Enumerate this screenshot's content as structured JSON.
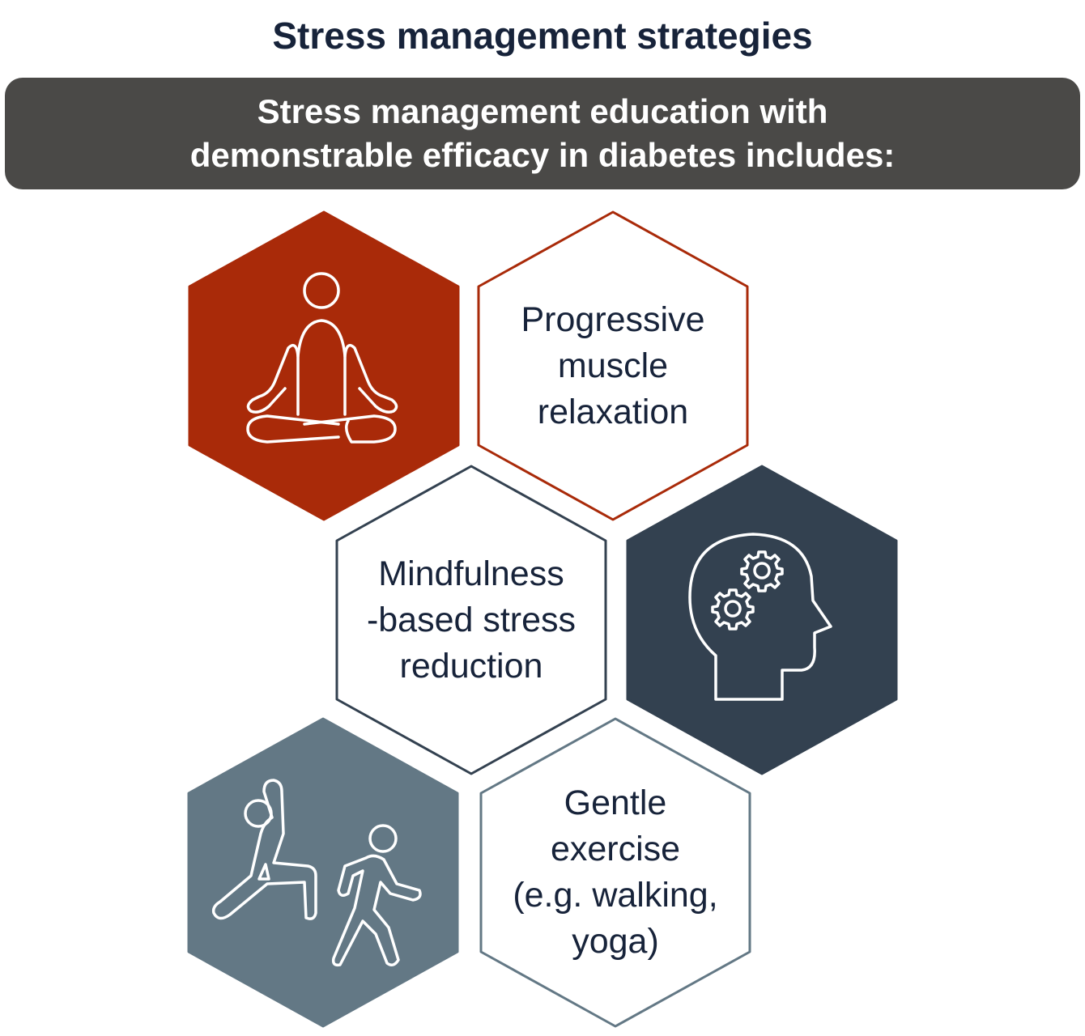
{
  "title": "Stress management strategies",
  "banner": {
    "line1": "Stress management education with",
    "line2": "demonstrable efficacy in diabetes includes:"
  },
  "colors": {
    "rust": "#a92a09",
    "navy": "#334150",
    "slate": "#637885",
    "text": "#17233a",
    "banner": "#4a4947"
  },
  "strategies": [
    {
      "icon": "meditation-icon",
      "lines": [
        "Progressive",
        "muscle",
        "relaxation"
      ]
    },
    {
      "icon": "head-gears-icon",
      "lines": [
        "Mindfulness",
        "-based stress",
        "reduction"
      ]
    },
    {
      "icon": "exercise-icon",
      "lines": [
        "Gentle",
        "exercise",
        "(e.g. walking,",
        "yoga)"
      ]
    }
  ]
}
